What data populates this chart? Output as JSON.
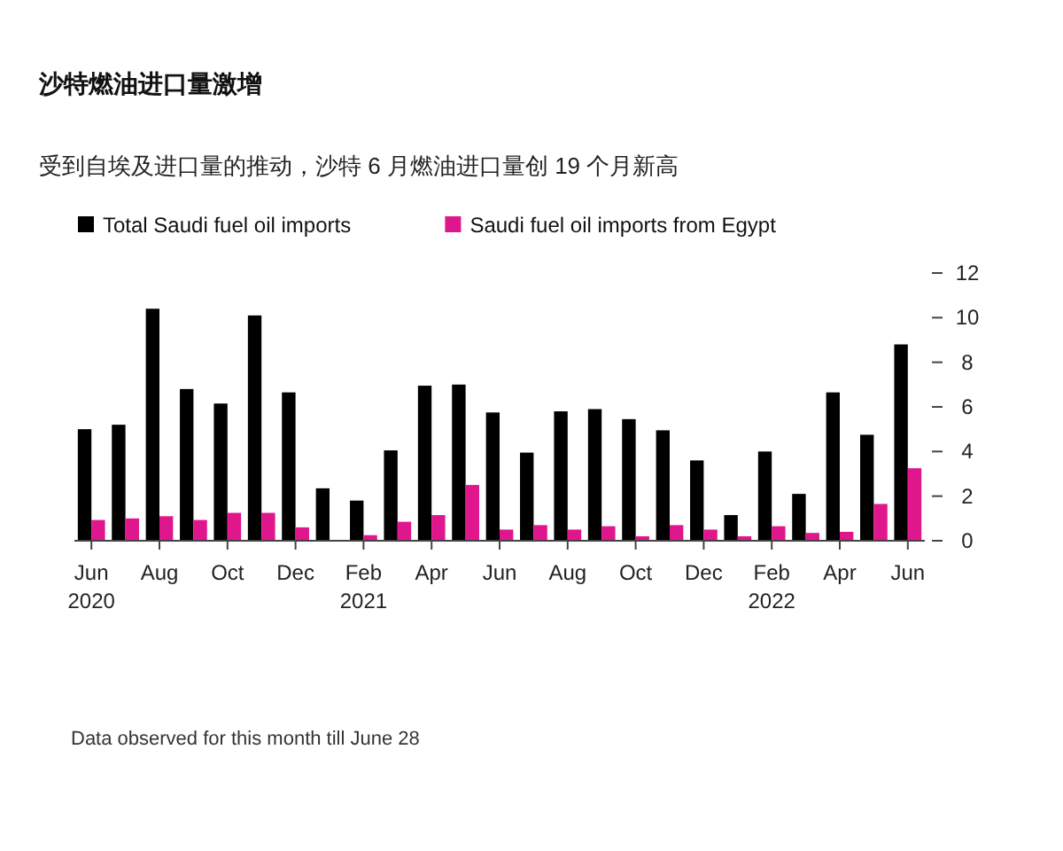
{
  "chart_data": {
    "type": "bar",
    "title": "沙特燃油进口量激增",
    "subtitle": "受到自埃及进口量的推动，沙特 6 月燃油进口量创 19 个月新高",
    "categories": [
      "Jun\n2020",
      null,
      "Aug",
      null,
      "Oct",
      null,
      "Dec",
      null,
      "Feb\n2021",
      null,
      "Apr",
      null,
      "Jun",
      null,
      "Aug",
      null,
      "Oct",
      null,
      "Dec",
      null,
      "Feb\n2022",
      null,
      "Apr",
      null,
      "Jun"
    ],
    "series": [
      {
        "name": "Total Saudi fuel oil imports",
        "color": "#000000",
        "values": [
          5.0,
          5.2,
          10.4,
          6.8,
          6.15,
          10.1,
          6.65,
          2.35,
          1.8,
          4.05,
          6.95,
          7.0,
          5.75,
          3.95,
          5.8,
          5.9,
          5.45,
          4.95,
          3.6,
          1.15,
          4.0,
          2.1,
          6.65,
          4.75,
          8.8
        ]
      },
      {
        "name": "Saudi fuel oil imports from Egypt",
        "color": "#e0168c",
        "values": [
          0.93,
          1.0,
          1.1,
          0.93,
          1.25,
          1.25,
          0.6,
          0,
          0.25,
          0.85,
          1.15,
          2.5,
          0.5,
          0.7,
          0.5,
          0.65,
          0.2,
          0.7,
          0.5,
          0.2,
          0.65,
          0.35,
          0.4,
          1.65,
          3.25
        ]
      }
    ],
    "ylim": [
      0,
      12
    ],
    "yticks": [
      0,
      2,
      4,
      6,
      8,
      10,
      12
    ],
    "legend": "top left",
    "annotations": [
      "Data observed for this month till June 28"
    ]
  }
}
